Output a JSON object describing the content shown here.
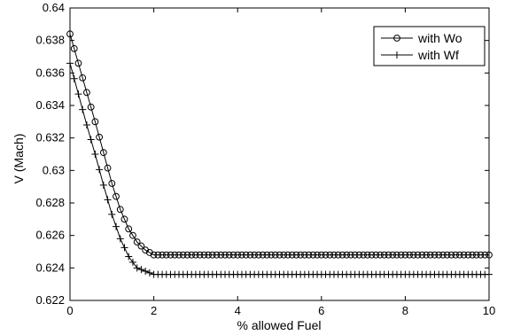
{
  "chart_data": {
    "type": "line",
    "title": "",
    "xlabel": "% allowed Fuel",
    "ylabel": "V (Mach)",
    "xlim": [
      0,
      10
    ],
    "ylim": [
      0.622,
      0.64
    ],
    "x_ticks": [
      "0",
      "2",
      "4",
      "6",
      "8",
      "10"
    ],
    "y_ticks": [
      "0.622",
      "0.624",
      "0.626",
      "0.628",
      "0.63",
      "0.632",
      "0.634",
      "0.636",
      "0.638",
      "0.64"
    ],
    "grid": false,
    "legend_position": "top-right",
    "x_step": 0.1,
    "series": [
      {
        "name": "with Wo",
        "marker": "circle",
        "color": "#000000",
        "breakpoints_x": [
          0,
          0.2,
          0.4,
          0.6,
          0.8,
          1.0,
          1.2,
          1.4,
          1.6,
          1.8,
          2.0,
          2.1,
          10
        ],
        "breakpoints_y": [
          0.6384,
          0.6366,
          0.6348,
          0.633,
          0.6311,
          0.6292,
          0.6276,
          0.6264,
          0.6256,
          0.6251,
          0.6248,
          0.6248,
          0.6248
        ]
      },
      {
        "name": "with Wf",
        "marker": "plus",
        "color": "#000000",
        "breakpoints_x": [
          0,
          0.2,
          0.4,
          0.6,
          0.8,
          1.0,
          1.2,
          1.4,
          1.6,
          1.8,
          2.0,
          2.1,
          10
        ],
        "breakpoints_y": [
          0.6366,
          0.6347,
          0.6328,
          0.631,
          0.6291,
          0.6273,
          0.6258,
          0.6247,
          0.624,
          0.6238,
          0.6236,
          0.6236,
          0.6236
        ]
      }
    ]
  }
}
